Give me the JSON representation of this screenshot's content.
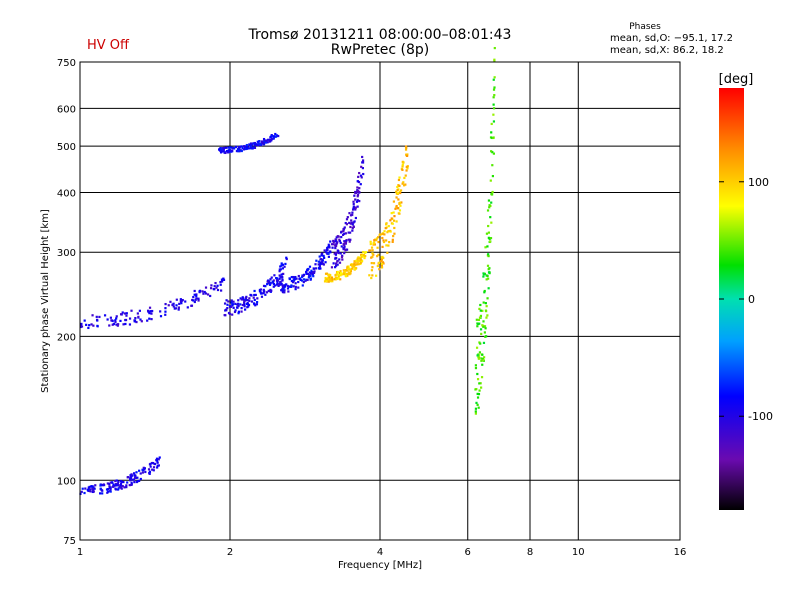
{
  "header": {
    "title": "Tromsø 20131211 08:00:00–08:01:43",
    "subtitle": "RwPretec (8p)",
    "status": "HV Off",
    "phase_title": "Phases",
    "phase_o": "mean, sd,O: −95.1, 17.2",
    "phase_x": "mean, sd,X: 86.2, 18.2"
  },
  "colors": {
    "status": "#cc0000",
    "grid": "#000000"
  },
  "chart_data": {
    "type": "scatter",
    "xlabel": "Frequency [MHz]",
    "ylabel": "Stationary phase Virtual Height [km]",
    "xscale": "log",
    "yscale": "log",
    "xlim": [
      1,
      16
    ],
    "ylim": [
      75,
      750
    ],
    "x_ticks": [
      1,
      2,
      4,
      6,
      8,
      10,
      16
    ],
    "y_ticks": [
      75,
      100,
      200,
      300,
      400,
      500,
      600,
      750
    ],
    "grid": true,
    "colorbar": {
      "label": "[deg]",
      "min": -180,
      "max": 180,
      "ticks": [
        100,
        0,
        -100
      ],
      "colormap": "rainbow (black→purple→blue→cyan→green→yellow→red)"
    },
    "traces": [
      {
        "x_range": [
          1.0,
          1.95
        ],
        "y_range": [
          215,
          260
        ],
        "phase": -100
      },
      {
        "x_range": [
          1.95,
          2.6
        ],
        "y_range": [
          230,
          285
        ],
        "phase": -95
      },
      {
        "x_range": [
          2.5,
          3.2
        ],
        "y_range": [
          255,
          310
        ],
        "phase": -90
      },
      {
        "x_range": [
          3.2,
          3.7
        ],
        "y_range": [
          300,
          460
        ],
        "phase": -110
      },
      {
        "x_range": [
          3.1,
          3.75
        ],
        "y_range": [
          265,
          300
        ],
        "phase": 100
      },
      {
        "x_range": [
          3.8,
          4.55
        ],
        "y_range": [
          290,
          490
        ],
        "phase": 105
      },
      {
        "x_range": [
          1.0,
          1.45
        ],
        "y_range": [
          95,
          110
        ],
        "phase": -95
      },
      {
        "x_range": [
          1.9,
          2.5
        ],
        "y_range": [
          490,
          530
        ],
        "phase": -90
      },
      {
        "x_range": [
          6.2,
          6.8
        ],
        "y_range": [
          170,
          700
        ],
        "phase": 40
      }
    ]
  }
}
